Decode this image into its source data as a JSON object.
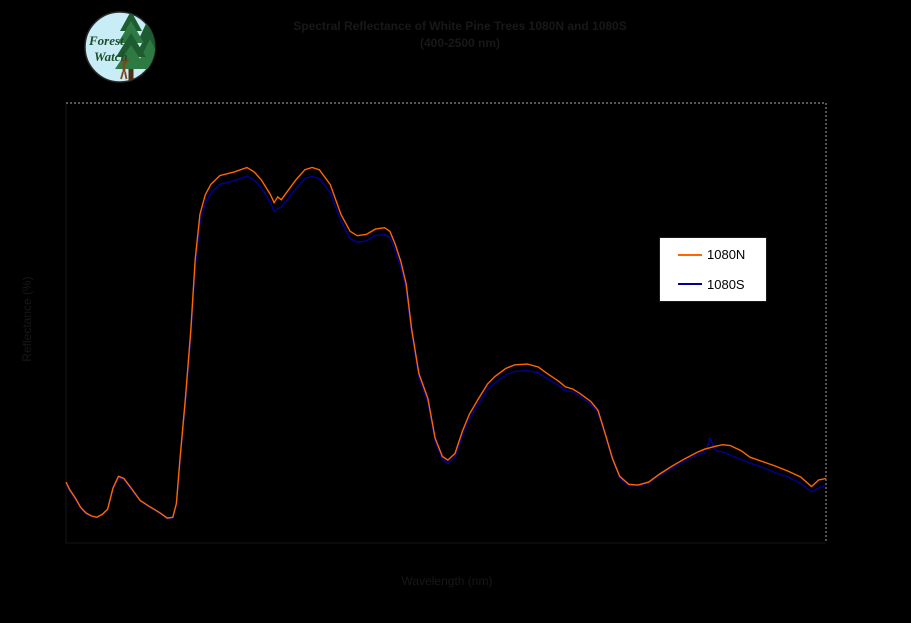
{
  "title": {
    "line1": "Spectral Reflectance of White Pine Trees 1080N and 1080S",
    "line2": "(400-2500 nm)"
  },
  "logo": {
    "text_line1": "Forest",
    "text_line2": "Watch",
    "circle_fill": "#c9edf7",
    "circle_stroke": "#2b2b2b",
    "tree_dark": "#1d5c30",
    "tree_mid": "#2e7a42",
    "trunk": "#4a3215",
    "person": "#7a4a1e",
    "text_color": "#1b4f2c"
  },
  "axes": {
    "x_label": "Wavelength (nm)",
    "y_label": "Reflectance (%)",
    "axis_color": "#131313",
    "gridline_color": "#a8a8a8"
  },
  "legend": {
    "items": [
      {
        "label": "1080N",
        "color": "#ff6600"
      },
      {
        "label": "1080S",
        "color": "#000099"
      }
    ]
  },
  "chart_data": {
    "type": "line",
    "title": "Spectral Reflectance of White Pine Trees 1080N and 1080S",
    "xlabel": "Wavelength (nm)",
    "ylabel": "Reflectance (%)",
    "xlim": [
      400,
      2500
    ],
    "ylim": [
      0,
      60
    ],
    "grid": "top and right gray dashed border lines only",
    "legend_position": "right-center, white box",
    "x": [
      400,
      410,
      425,
      440,
      455,
      470,
      485,
      500,
      515,
      530,
      545,
      560,
      580,
      605,
      630,
      660,
      680,
      695,
      705,
      715,
      730,
      745,
      757,
      770,
      785,
      800,
      825,
      865,
      900,
      920,
      940,
      965,
      975,
      985,
      995,
      1005,
      1035,
      1060,
      1080,
      1100,
      1130,
      1160,
      1185,
      1205,
      1230,
      1255,
      1280,
      1295,
      1310,
      1325,
      1340,
      1355,
      1375,
      1400,
      1420,
      1440,
      1455,
      1475,
      1495,
      1515,
      1540,
      1565,
      1585,
      1615,
      1640,
      1675,
      1705,
      1730,
      1760,
      1780,
      1800,
      1820,
      1850,
      1870,
      1890,
      1910,
      1930,
      1955,
      1980,
      2010,
      2040,
      2075,
      2110,
      2145,
      2165,
      2180,
      2195,
      2215,
      2235,
      2265,
      2290,
      2325,
      2360,
      2395,
      2430,
      2460,
      2480,
      2500
    ],
    "series": [
      {
        "name": "1080N",
        "color": "#ff6600",
        "values": [
          8.3,
          7.3,
          6.2,
          4.9,
          4.1,
          3.7,
          3.5,
          3.9,
          4.6,
          7.5,
          9.1,
          8.8,
          7.5,
          5.8,
          5.0,
          4.1,
          3.4,
          3.5,
          5.4,
          11.5,
          19.7,
          29.2,
          38.7,
          44.8,
          47.5,
          48.9,
          50.1,
          50.6,
          51.2,
          50.6,
          49.5,
          47.5,
          46.4,
          47.2,
          46.8,
          47.5,
          49.5,
          50.9,
          51.2,
          50.9,
          48.9,
          44.8,
          42.5,
          41.9,
          42.1,
          42.8,
          43.0,
          42.5,
          40.7,
          38.4,
          35.3,
          29.2,
          23.1,
          19.7,
          14.3,
          11.8,
          11.3,
          12.2,
          15.2,
          17.6,
          19.7,
          21.7,
          22.7,
          23.8,
          24.3,
          24.4,
          24.0,
          23.1,
          22.1,
          21.3,
          21.0,
          20.4,
          19.3,
          18.1,
          14.9,
          11.5,
          9.1,
          8.0,
          7.9,
          8.3,
          9.4,
          10.5,
          11.5,
          12.4,
          12.8,
          13.0,
          13.2,
          13.4,
          13.3,
          12.6,
          11.7,
          11.1,
          10.5,
          9.8,
          9.0,
          7.7,
          8.6,
          8.8
        ]
      },
      {
        "name": "1080S",
        "color": "#000099",
        "values": [
          8.1,
          7.1,
          6.0,
          4.8,
          4.0,
          3.6,
          3.5,
          3.8,
          4.5,
          7.3,
          8.9,
          8.6,
          7.3,
          5.7,
          4.9,
          4.0,
          3.3,
          3.4,
          5.2,
          11.0,
          19.0,
          28.3,
          37.6,
          43.6,
          46.3,
          47.7,
          48.9,
          49.4,
          50.0,
          49.5,
          48.4,
          46.4,
          45.2,
          45.6,
          45.8,
          46.4,
          48.3,
          49.7,
          50.0,
          49.7,
          47.8,
          43.9,
          41.5,
          41.0,
          41.2,
          41.9,
          42.1,
          41.7,
          39.9,
          37.6,
          34.6,
          28.6,
          22.6,
          19.2,
          13.9,
          11.4,
          10.8,
          11.7,
          14.6,
          17.0,
          19.0,
          20.9,
          21.8,
          22.9,
          23.4,
          23.5,
          23.2,
          22.4,
          21.5,
          20.8,
          20.6,
          20.0,
          18.9,
          17.8,
          14.7,
          11.3,
          8.9,
          7.8,
          7.8,
          8.2,
          9.2,
          10.2,
          11.2,
          12.0,
          12.3,
          14.2,
          12.6,
          12.4,
          12.0,
          11.4,
          10.9,
          10.3,
          9.6,
          9.0,
          8.1,
          7.0,
          7.5,
          7.9
        ]
      }
    ]
  }
}
